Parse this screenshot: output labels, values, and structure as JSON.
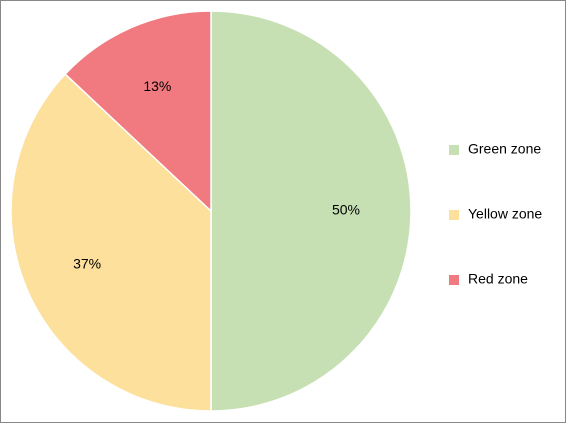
{
  "chart_data": {
    "type": "pie",
    "categories": [
      "Green zone",
      "Yellow zone",
      "Red zone"
    ],
    "values": [
      50,
      37,
      13
    ],
    "value_labels": [
      "50%",
      "37%",
      "13%"
    ],
    "colors": [
      "#c6e0b4",
      "#fce09b",
      "#f07a80"
    ],
    "legend": "right"
  }
}
